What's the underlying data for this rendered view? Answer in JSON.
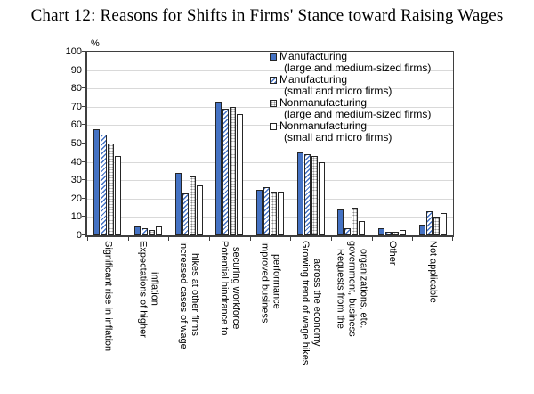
{
  "title": "Chart 12: Reasons for Shifts in Firms' Stance toward Raising Wages",
  "chart_data": {
    "type": "bar",
    "title": "Chart 12: Reasons for Shifts in Firms' Stance toward Raising Wages",
    "unit_label": "%",
    "ylim": [
      0,
      100
    ],
    "ytick_step": 10,
    "grid": true,
    "legend_position": "top-right-inside",
    "categories": [
      {
        "label": "Significant rise in inflation",
        "lines": [
          "Significant rise in inflation"
        ]
      },
      {
        "label": "Expectations of higher inflation",
        "lines": [
          "Expectations of higher",
          "inflation"
        ]
      },
      {
        "label": "Increased cases of wage hikes at other firms",
        "lines": [
          "Increased cases of wage",
          "hikes at other firms"
        ]
      },
      {
        "label": "Potential hindrance to securing workforce",
        "lines": [
          "Potential hindrance to",
          "securing workforce"
        ]
      },
      {
        "label": "Improved business performance",
        "lines": [
          "Improved business",
          "performance"
        ]
      },
      {
        "label": "Growing trend of wage hikes across the economy",
        "lines": [
          "Growing trend of wage hikes",
          "across the economy"
        ]
      },
      {
        "label": "Requests from the government, business organizations, etc.",
        "lines": [
          "Requests from the",
          "government, business",
          "organizations, etc."
        ]
      },
      {
        "label": "Other",
        "lines": [
          "Other"
        ]
      },
      {
        "label": "Not applicable",
        "lines": [
          "Not applicable"
        ]
      }
    ],
    "series": [
      {
        "name": "Manufacturing (large and medium-sized firms)",
        "legend_lines": [
          "Manufacturing",
          "(large and medium-sized firms)"
        ],
        "style": "solid-blue",
        "values": [
          58,
          5,
          34,
          73,
          25,
          45,
          14,
          4,
          6
        ]
      },
      {
        "name": "Manufacturing (small and micro firms)",
        "legend_lines": [
          "Manufacturing",
          "(small and micro firms)"
        ],
        "style": "blue-diagonal-hatch",
        "values": [
          55,
          4,
          23,
          69,
          26,
          44,
          4,
          2,
          13
        ]
      },
      {
        "name": "Nonmanufacturing (large and medium-sized firms)",
        "legend_lines": [
          "Nonmanufacturing",
          "(large and medium-sized firms)"
        ],
        "style": "gray-dot-pattern",
        "values": [
          50,
          3,
          32,
          70,
          24,
          43,
          15,
          2,
          10
        ]
      },
      {
        "name": "Nonmanufacturing (small and micro firms)",
        "legend_lines": [
          "Nonmanufacturing",
          "(small and micro firms)"
        ],
        "style": "white-outline",
        "values": [
          43,
          5,
          27,
          66,
          24,
          40,
          8,
          3,
          12
        ]
      }
    ],
    "colors": {
      "bar_blue": "#4472C4",
      "bar_border": "#262626",
      "gridline": "#D9D9D9",
      "axis": "#3F3F3F",
      "dot_gray": "#8C8C8C",
      "text": "#000000"
    }
  }
}
